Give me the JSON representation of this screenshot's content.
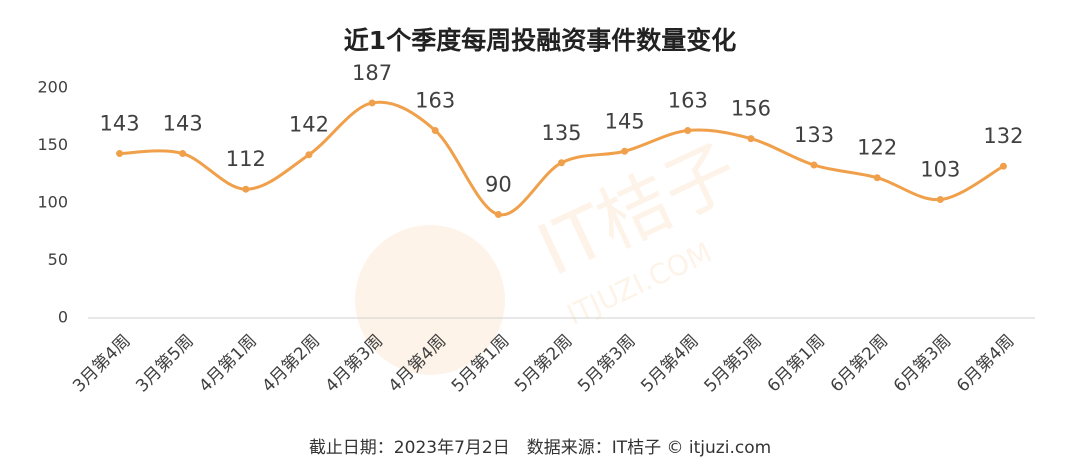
{
  "chart_data": {
    "type": "line",
    "title": "近1个季度每周投融资事件数量变化",
    "categories": [
      "3月第4周",
      "3月第5周",
      "4月第1周",
      "4月第2周",
      "4月第3周",
      "4月第4周",
      "5月第1周",
      "5月第2周",
      "5月第3周",
      "5月第4周",
      "5月第5周",
      "6月第1周",
      "6月第2周",
      "6月第3周",
      "6月第4周"
    ],
    "values": [
      143,
      143,
      112,
      142,
      187,
      163,
      90,
      135,
      145,
      163,
      156,
      133,
      122,
      103,
      132
    ],
    "color": "#f0a04b",
    "ylim": [
      0,
      200
    ],
    "yticks": [
      0,
      50,
      100,
      150,
      200
    ],
    "grid": false,
    "source": "截止日期：2023年7月2日　数据来源：IT桔子 © itjuzi.com",
    "watermark": [
      "IT桔子",
      "ITJUZI.COM"
    ]
  }
}
